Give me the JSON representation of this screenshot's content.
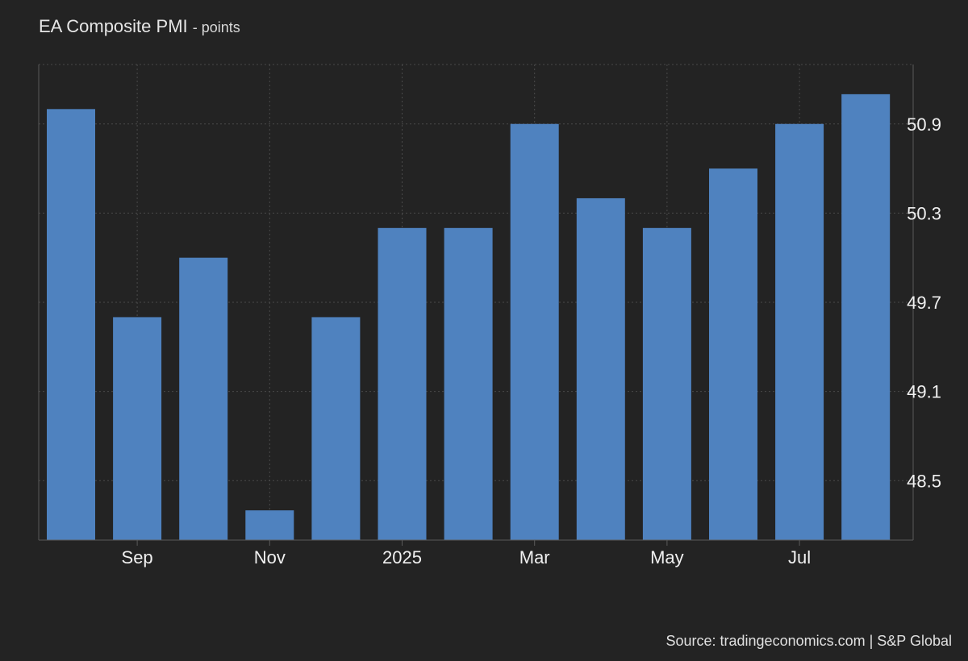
{
  "header": {
    "title": "EA Composite PMI",
    "subtitle": "- points"
  },
  "footer": {
    "source": "Source: tradingeconomics.com | S&P Global"
  },
  "chart_data": {
    "type": "bar",
    "title": "EA Composite PMI",
    "subtitle": "- points",
    "categories": [
      "2024-08",
      "2024-09",
      "2024-10",
      "2024-11",
      "2024-12",
      "2025-01",
      "2025-02",
      "2025-03",
      "2025-04",
      "2025-05",
      "2025-06",
      "2025-07",
      "2025-08"
    ],
    "values": [
      51.0,
      49.6,
      50.0,
      48.3,
      49.6,
      50.2,
      50.2,
      50.9,
      50.4,
      50.2,
      50.6,
      50.9,
      51.1
    ],
    "x_tick_labels": [
      {
        "category": "2024-09",
        "label": "Sep"
      },
      {
        "category": "2024-11",
        "label": "Nov"
      },
      {
        "category": "2025-01",
        "label": "2025"
      },
      {
        "category": "2025-03",
        "label": "Mar"
      },
      {
        "category": "2025-05",
        "label": "May"
      },
      {
        "category": "2025-07",
        "label": "Jul"
      }
    ],
    "y_ticks": [
      "48.5",
      "49.1",
      "49.7",
      "50.3",
      "50.9"
    ],
    "ylim": [
      48.1,
      51.3
    ],
    "y_axis_side": "right",
    "grid": true,
    "legend": "none",
    "colors": {
      "bar": "#4f82bf",
      "grid": "#4a4a4a",
      "axis": "#5a5a5a",
      "background": "#232323"
    }
  }
}
